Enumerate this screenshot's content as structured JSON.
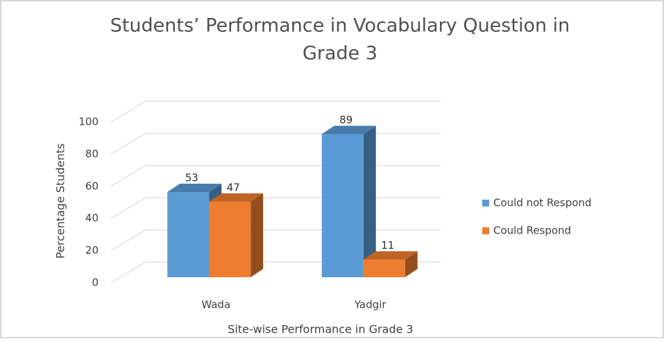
{
  "chart_data": {
    "type": "bar3d",
    "title": "Students’ Performance in Vocabulary Question in",
    "subtitle": "Grade 3",
    "x_label": "Site-wise Performance in Grade 3",
    "y_label": "Percentage Students",
    "categories": [
      "Wada",
      "Yadgir"
    ],
    "series": [
      {
        "name": "Could not Respond",
        "color": "#5b9bd5",
        "values": [
          53,
          89
        ]
      },
      {
        "name": "Could Respond",
        "color": "#ed7d31",
        "values": [
          47,
          11
        ]
      }
    ],
    "ylim": [
      0,
      100
    ],
    "yticks": [
      0,
      20,
      40,
      60,
      80,
      100
    ],
    "grid": true,
    "legend": "right",
    "data_labels": true
  }
}
